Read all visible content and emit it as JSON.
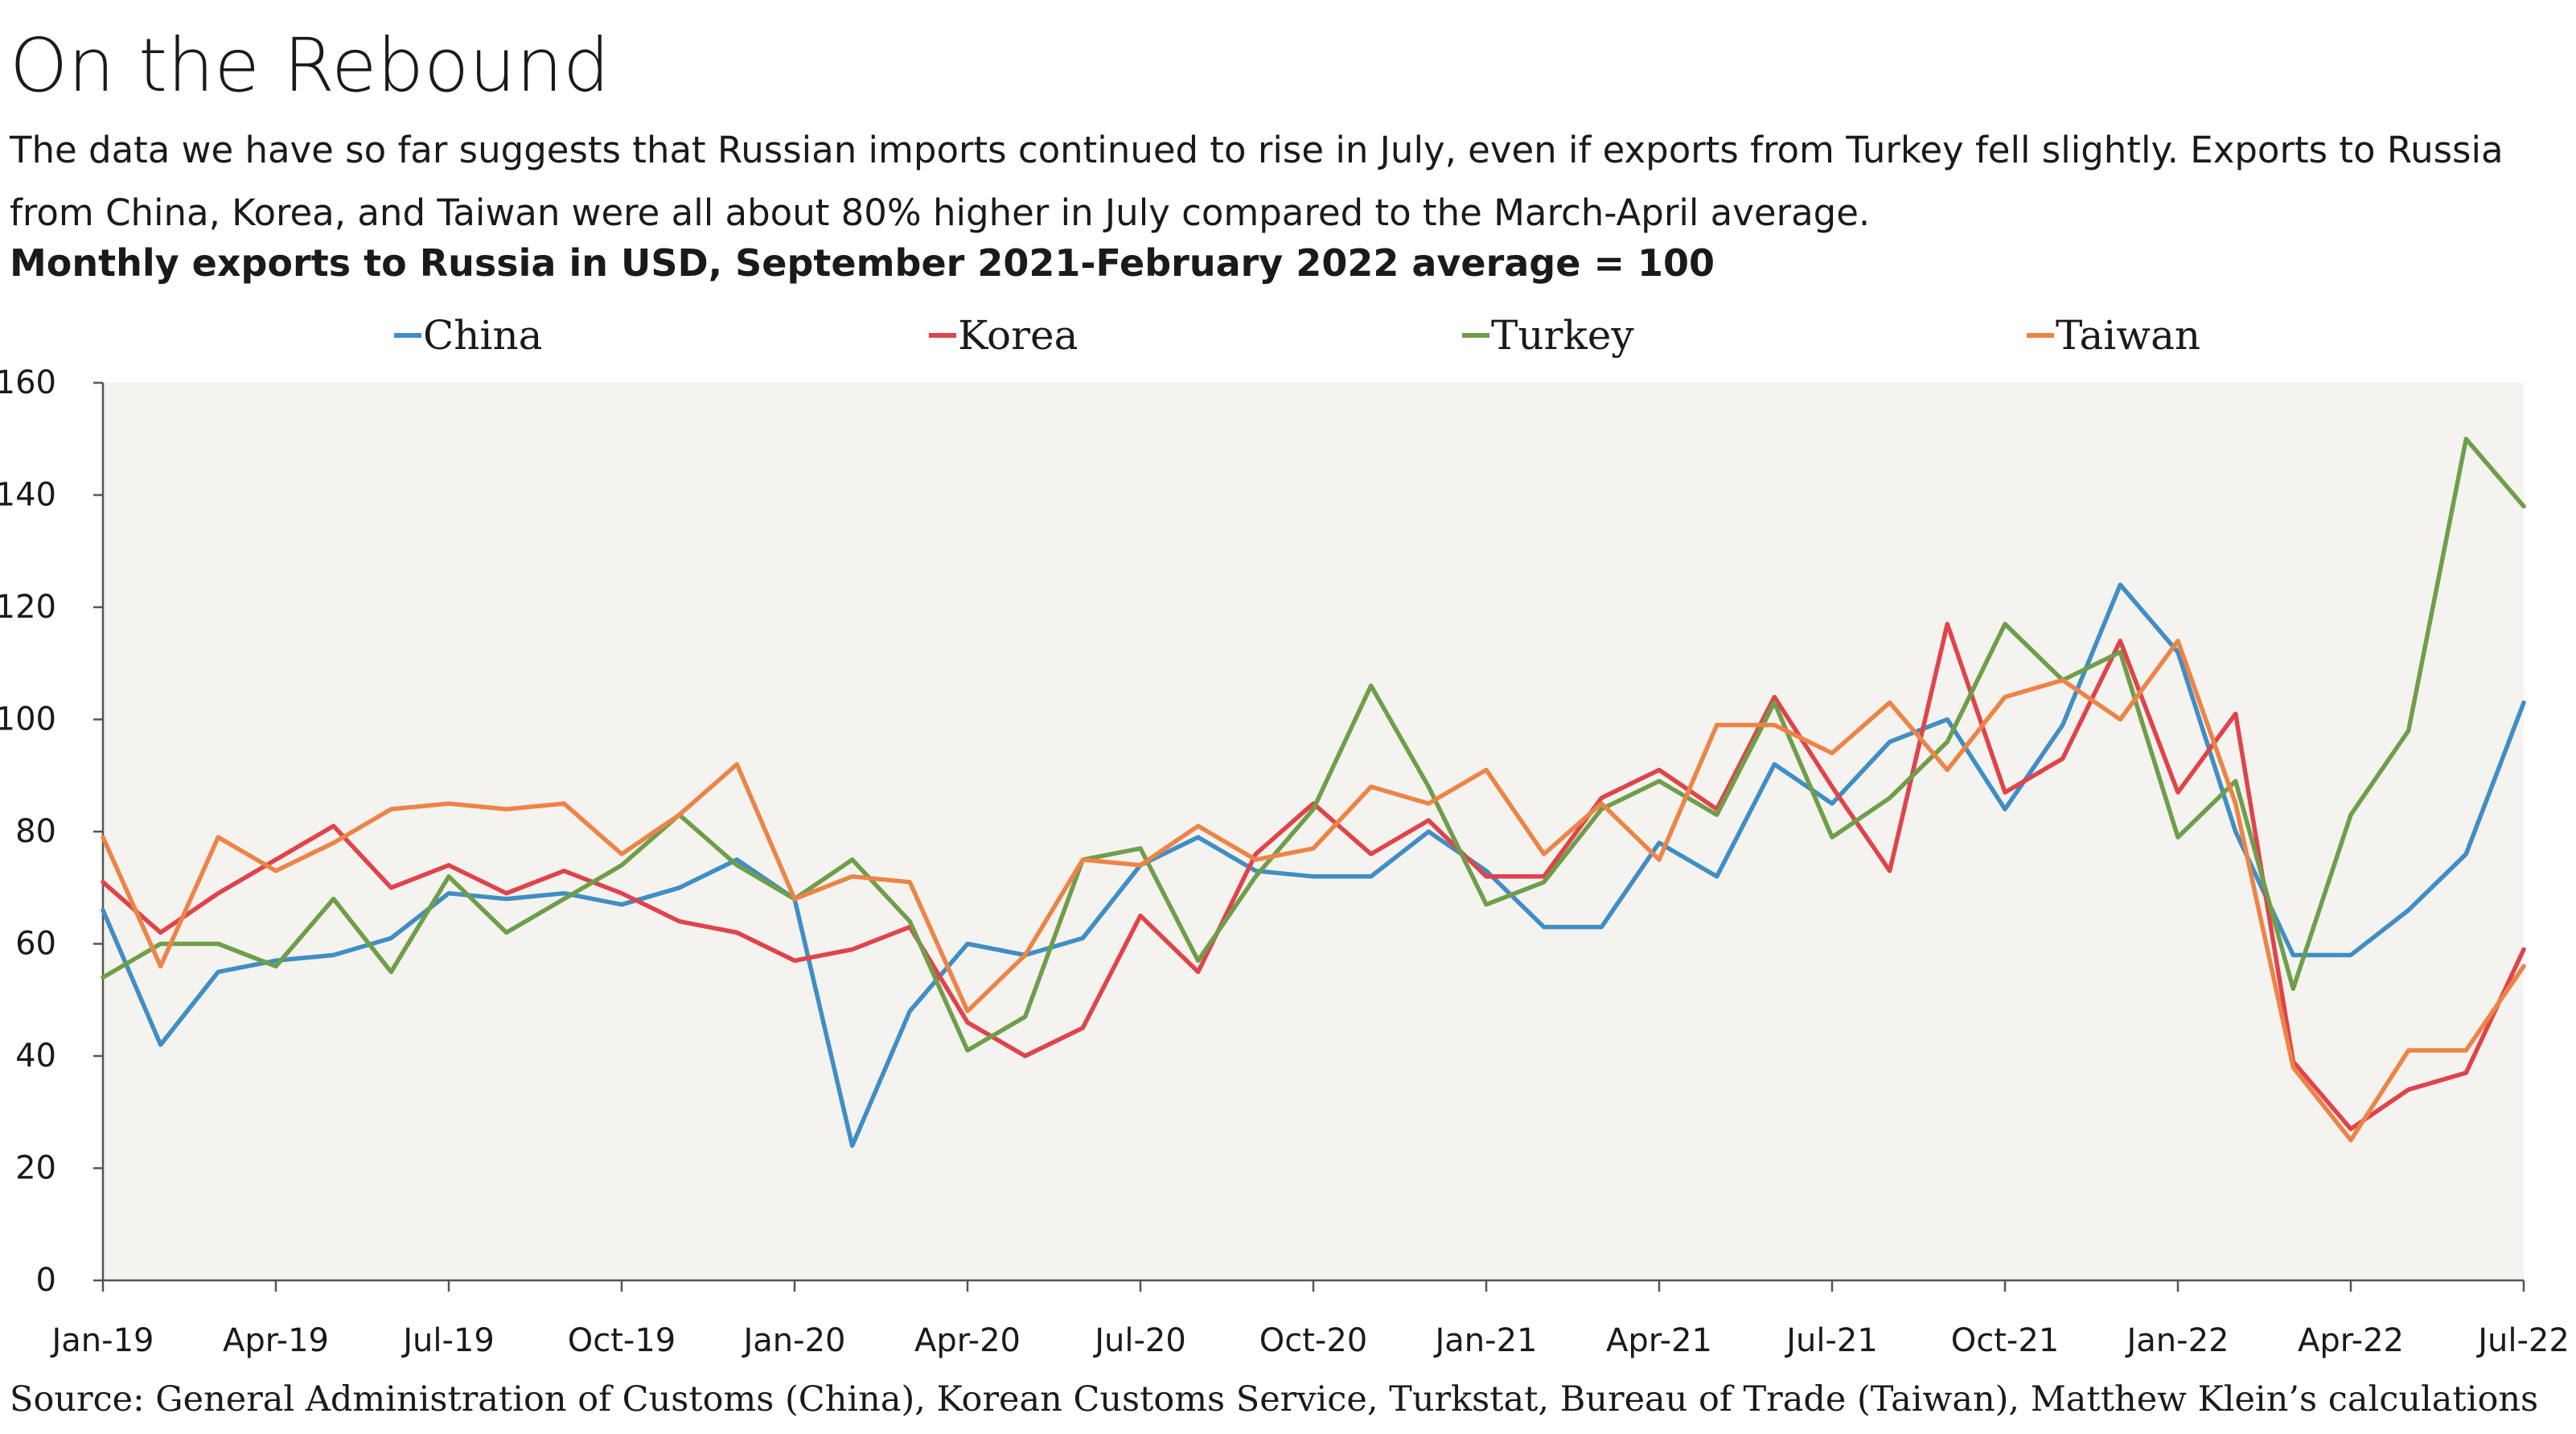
{
  "title": "On the Rebound",
  "subtitle": "The data we have so far suggests that Russian imports continued to rise in July, even if exports from Turkey fell slightly. Exports to Russia from China, Korea, and Taiwan were all about 80% higher in July compared to the March-April average.",
  "chart_heading": "Monthly exports to Russia in USD, September 2021-February 2022 average = 100",
  "source": "Source: General Administration of Customs (China), Korean Customs Service, Turkstat, Bureau of Trade (Taiwan), Matthew Klein’s calculations",
  "chart_data": {
    "type": "line",
    "x": [
      "Jan-19",
      "Feb-19",
      "Mar-19",
      "Apr-19",
      "May-19",
      "Jun-19",
      "Jul-19",
      "Aug-19",
      "Sep-19",
      "Oct-19",
      "Nov-19",
      "Dec-19",
      "Jan-20",
      "Feb-20",
      "Mar-20",
      "Apr-20",
      "May-20",
      "Jun-20",
      "Jul-20",
      "Aug-20",
      "Sep-20",
      "Oct-20",
      "Nov-20",
      "Dec-20",
      "Jan-21",
      "Feb-21",
      "Mar-21",
      "Apr-21",
      "May-21",
      "Jun-21",
      "Jul-21",
      "Aug-21",
      "Sep-21",
      "Oct-21",
      "Nov-21",
      "Dec-21",
      "Jan-22",
      "Feb-22",
      "Mar-22",
      "Apr-22",
      "May-22",
      "Jun-22",
      "Jul-22"
    ],
    "x_tick_labels": [
      "Jan-19",
      "Apr-19",
      "Jul-19",
      "Oct-19",
      "Jan-20",
      "Apr-20",
      "Jul-20",
      "Oct-20",
      "Jan-21",
      "Apr-21",
      "Jul-21",
      "Oct-21",
      "Jan-22",
      "Apr-22",
      "Jul-22"
    ],
    "y_ticks": [
      "0",
      "20",
      "40",
      "60",
      "80",
      "100",
      "120",
      "140",
      "160"
    ],
    "ylim": [
      0,
      160
    ],
    "legend_position": "top",
    "series": [
      {
        "name": "China",
        "color": "#3f8ec5",
        "values": [
          66,
          42,
          55,
          57,
          58,
          61,
          69,
          68,
          69,
          67,
          70,
          75,
          68,
          24,
          48,
          60,
          58,
          61,
          74,
          79,
          73,
          72,
          72,
          80,
          73,
          63,
          63,
          78,
          72,
          92,
          85,
          96,
          100,
          84,
          99,
          124,
          112,
          80,
          58,
          58,
          66,
          76,
          103
        ]
      },
      {
        "name": "Korea",
        "color": "#e0434a",
        "values": [
          71,
          62,
          69,
          75,
          81,
          70,
          74,
          69,
          73,
          69,
          64,
          62,
          57,
          59,
          63,
          46,
          40,
          45,
          65,
          55,
          76,
          85,
          76,
          82,
          72,
          72,
          86,
          91,
          84,
          104,
          88,
          73,
          117,
          87,
          93,
          114,
          87,
          101,
          39,
          27,
          34,
          37,
          59
        ]
      },
      {
        "name": "Turkey",
        "color": "#6f9e4a",
        "values": [
          54,
          60,
          60,
          56,
          68,
          55,
          72,
          62,
          68,
          74,
          83,
          74,
          68,
          75,
          64,
          41,
          47,
          75,
          77,
          57,
          72,
          84,
          106,
          88,
          67,
          71,
          84,
          89,
          83,
          103,
          79,
          86,
          96,
          117,
          107,
          112,
          79,
          89,
          52,
          83,
          98,
          150,
          138
        ]
      },
      {
        "name": "Taiwan",
        "color": "#ec8447",
        "values": [
          79,
          56,
          79,
          73,
          78,
          84,
          85,
          84,
          85,
          76,
          83,
          92,
          68,
          72,
          71,
          48,
          58,
          75,
          74,
          81,
          75,
          77,
          88,
          85,
          91,
          76,
          85,
          75,
          99,
          99,
          94,
          103,
          91,
          104,
          107,
          100,
          114,
          85,
          38,
          25,
          41,
          41,
          56
        ]
      }
    ]
  }
}
